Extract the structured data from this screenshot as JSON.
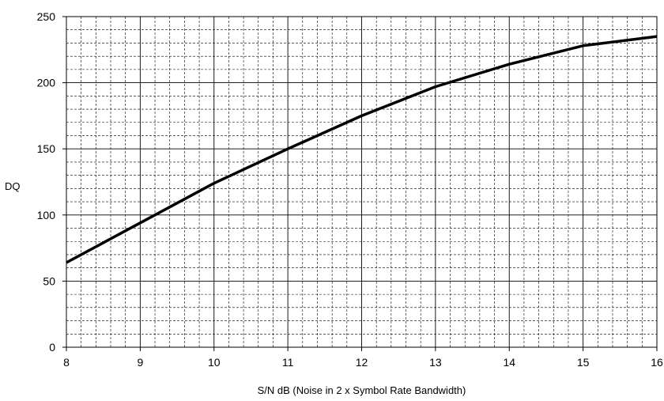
{
  "chart_data": {
    "type": "line",
    "title": "",
    "xlabel": "S/N dB (Noise in 2 x Symbol Rate Bandwidth)",
    "ylabel": "DQ",
    "xlim": [
      8,
      16
    ],
    "ylim": [
      0,
      250
    ],
    "x_ticks": [
      "8",
      "9",
      "10",
      "11",
      "12",
      "13",
      "14",
      "15",
      "16"
    ],
    "y_ticks": [
      "0",
      "50",
      "100",
      "150",
      "200",
      "250"
    ],
    "grid": "major solid, minor dashed",
    "minor_x_step": 0.2,
    "minor_y_step": 10,
    "series": [
      {
        "x": [
          8,
          9,
          10,
          11,
          12,
          13,
          14,
          15,
          16
        ],
        "y": [
          64,
          94,
          124,
          150,
          175,
          197,
          214,
          228,
          235
        ],
        "color": "#000000"
      }
    ]
  }
}
